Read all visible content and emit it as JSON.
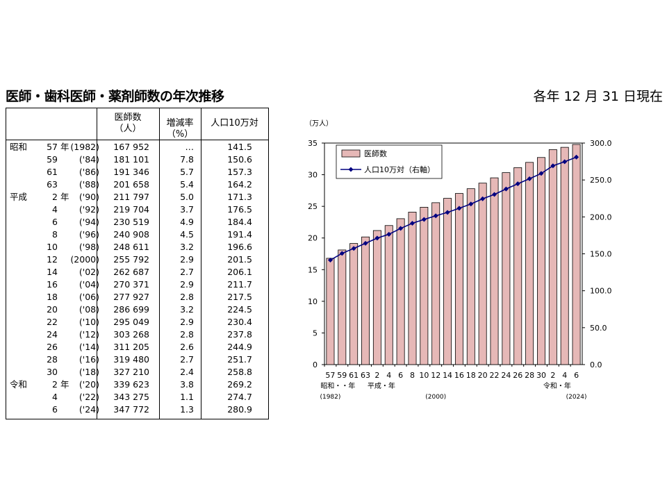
{
  "title": "医師・歯科医師・薬剤師数の年次推移",
  "as_of": "各年 12 月 31 日現在",
  "table": {
    "headers": {
      "doctors": "医師数\n（人）",
      "rate": "増減率\n（%）",
      "per100k": "人口10万対"
    },
    "rows": [
      {
        "era": "昭和",
        "year": "57",
        "suffix": "年",
        "cyear": "(1982)",
        "doctors": "167 952",
        "rate": "…",
        "per100k": "141.5"
      },
      {
        "era": "",
        "year": "59",
        "suffix": "",
        "cyear": "('84)",
        "doctors": "181 101",
        "rate": "7.8",
        "per100k": "150.6"
      },
      {
        "era": "",
        "year": "61",
        "suffix": "",
        "cyear": "('86)",
        "doctors": "191 346",
        "rate": "5.7",
        "per100k": "157.3"
      },
      {
        "era": "",
        "year": "63",
        "suffix": "",
        "cyear": "('88)",
        "doctors": "201 658",
        "rate": "5.4",
        "per100k": "164.2"
      },
      {
        "era": "平成",
        "year": "2",
        "suffix": "年",
        "cyear": "('90)",
        "doctors": "211 797",
        "rate": "5.0",
        "per100k": "171.3"
      },
      {
        "era": "",
        "year": "4",
        "suffix": "",
        "cyear": "('92)",
        "doctors": "219 704",
        "rate": "3.7",
        "per100k": "176.5"
      },
      {
        "era": "",
        "year": "6",
        "suffix": "",
        "cyear": "('94)",
        "doctors": "230 519",
        "rate": "4.9",
        "per100k": "184.4"
      },
      {
        "era": "",
        "year": "8",
        "suffix": "",
        "cyear": "('96)",
        "doctors": "240 908",
        "rate": "4.5",
        "per100k": "191.4"
      },
      {
        "era": "",
        "year": "10",
        "suffix": "",
        "cyear": "('98)",
        "doctors": "248 611",
        "rate": "3.2",
        "per100k": "196.6"
      },
      {
        "era": "",
        "year": "12",
        "suffix": "",
        "cyear": "(2000)",
        "doctors": "255 792",
        "rate": "2.9",
        "per100k": "201.5"
      },
      {
        "era": "",
        "year": "14",
        "suffix": "",
        "cyear": "('02)",
        "doctors": "262 687",
        "rate": "2.7",
        "per100k": "206.1"
      },
      {
        "era": "",
        "year": "16",
        "suffix": "",
        "cyear": "('04)",
        "doctors": "270 371",
        "rate": "2.9",
        "per100k": "211.7"
      },
      {
        "era": "",
        "year": "18",
        "suffix": "",
        "cyear": "('06)",
        "doctors": "277 927",
        "rate": "2.8",
        "per100k": "217.5"
      },
      {
        "era": "",
        "year": "20",
        "suffix": "",
        "cyear": "('08)",
        "doctors": "286 699",
        "rate": "3.2",
        "per100k": "224.5"
      },
      {
        "era": "",
        "year": "22",
        "suffix": "",
        "cyear": "('10)",
        "doctors": "295 049",
        "rate": "2.9",
        "per100k": "230.4"
      },
      {
        "era": "",
        "year": "24",
        "suffix": "",
        "cyear": "('12)",
        "doctors": "303 268",
        "rate": "2.8",
        "per100k": "237.8"
      },
      {
        "era": "",
        "year": "26",
        "suffix": "",
        "cyear": "('14)",
        "doctors": "311 205",
        "rate": "2.6",
        "per100k": "244.9"
      },
      {
        "era": "",
        "year": "28",
        "suffix": "",
        "cyear": "('16)",
        "doctors": "319 480",
        "rate": "2.7",
        "per100k": "251.7"
      },
      {
        "era": "",
        "year": "30",
        "suffix": "",
        "cyear": "('18)",
        "doctors": "327 210",
        "rate": "2.4",
        "per100k": "258.8"
      },
      {
        "era": "令和",
        "year": "2",
        "suffix": "年",
        "cyear": "('20)",
        "doctors": "339 623",
        "rate": "3.8",
        "per100k": "269.2"
      },
      {
        "era": "",
        "year": "4",
        "suffix": "",
        "cyear": "('22)",
        "doctors": "343 275",
        "rate": "1.1",
        "per100k": "274.7"
      },
      {
        "era": "",
        "year": "6",
        "suffix": "",
        "cyear": "('24)",
        "doctors": "347 772",
        "rate": "1.3",
        "per100k": "280.9"
      }
    ]
  },
  "chart_data": {
    "type": "bar",
    "categories": [
      "57",
      "59",
      "61",
      "63",
      "2",
      "4",
      "6",
      "8",
      "10",
      "12",
      "14",
      "16",
      "18",
      "20",
      "22",
      "24",
      "26",
      "28",
      "30",
      "2",
      "4",
      "6"
    ],
    "series": [
      {
        "name": "医師数",
        "axis": "left",
        "type": "bar",
        "color": "#e6b8b7",
        "values": [
          16.7952,
          18.1101,
          19.1346,
          20.1658,
          21.1797,
          21.9704,
          23.0519,
          24.0908,
          24.8611,
          25.5792,
          26.2687,
          27.0371,
          27.7927,
          28.6699,
          29.5049,
          30.3268,
          31.1205,
          31.948,
          32.721,
          33.9623,
          34.3275,
          34.7772
        ]
      },
      {
        "name": "人口10万対（右軸）",
        "axis": "right",
        "type": "line",
        "color": "#000080",
        "values": [
          141.5,
          150.6,
          157.3,
          164.2,
          171.3,
          176.5,
          184.4,
          191.4,
          196.6,
          201.5,
          206.1,
          211.7,
          217.5,
          224.5,
          230.4,
          237.8,
          244.9,
          251.7,
          258.8,
          269.2,
          274.7,
          280.9
        ]
      }
    ],
    "ylabel": "（万人）",
    "ylim": [
      0,
      35
    ],
    "yticks": [
      "0",
      "5",
      "10",
      "15",
      "20",
      "25",
      "30",
      "35"
    ],
    "y2lim": [
      0,
      300
    ],
    "y2ticks": [
      "0.0",
      "50.0",
      "100.0",
      "150.0",
      "200.0",
      "250.0",
      "300.0"
    ],
    "era_labels": [
      {
        "index": 0,
        "text": "昭和・・年"
      },
      {
        "index": 4,
        "text": "平成・年"
      },
      {
        "index": 19,
        "text": "令和・年"
      }
    ],
    "year_labels": [
      {
        "index": 0,
        "text": "(1982)"
      },
      {
        "index": 9,
        "text": "(2000)"
      },
      {
        "index": 21,
        "text": "(2024)"
      }
    ],
    "legend": "top-left",
    "grid": false
  }
}
